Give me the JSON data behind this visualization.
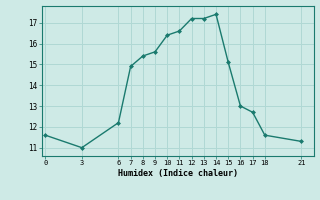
{
  "x": [
    0,
    3,
    6,
    7,
    8,
    9,
    10,
    11,
    12,
    13,
    14,
    15,
    16,
    17,
    18,
    21
  ],
  "y": [
    11.6,
    11.0,
    12.2,
    14.9,
    15.4,
    15.6,
    16.4,
    16.6,
    17.2,
    17.2,
    17.4,
    15.1,
    13.0,
    12.7,
    11.6,
    11.3
  ],
  "xticks": [
    0,
    3,
    6,
    7,
    8,
    9,
    10,
    11,
    12,
    13,
    14,
    15,
    16,
    17,
    18,
    21
  ],
  "yticks": [
    11,
    12,
    13,
    14,
    15,
    16,
    17
  ],
  "xlabel": "Humidex (Indice chaleur)",
  "line_color": "#1a7a6e",
  "bg_color": "#ceeae6",
  "grid_color": "#b0d8d4",
  "xlim": [
    -0.3,
    22.0
  ],
  "ylim": [
    10.6,
    17.8
  ]
}
